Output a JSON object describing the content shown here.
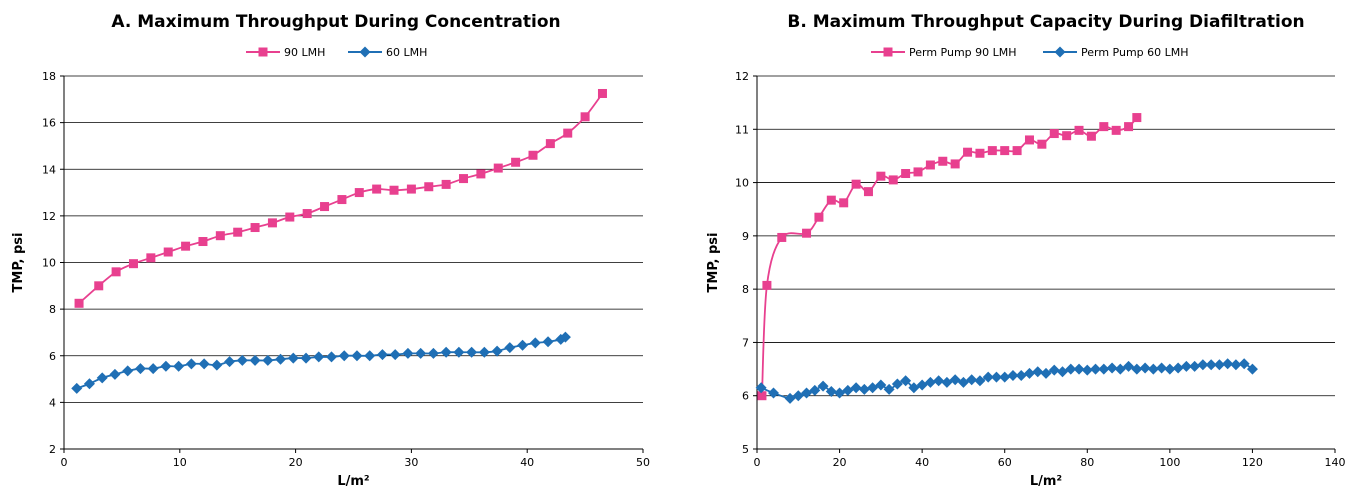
{
  "chart_data": [
    {
      "type": "line",
      "title": "A. Maximum Throughput During Concentration",
      "xlabel": "L/m²",
      "ylabel": "TMP, psi",
      "xlim": [
        0,
        50
      ],
      "ylim": [
        2,
        18
      ],
      "xticks": [
        0,
        10,
        20,
        30,
        40,
        50
      ],
      "yticks": [
        2,
        4,
        6,
        8,
        10,
        12,
        14,
        16,
        18
      ],
      "grid": "horizontal",
      "legend": "top-center",
      "series": [
        {
          "name": "90 LMH",
          "color": "#E8408F",
          "marker": "square",
          "x": [
            1.3,
            3.0,
            4.5,
            6.0,
            7.5,
            9.0,
            10.5,
            12.0,
            13.5,
            15.0,
            16.5,
            18.0,
            19.5,
            21.0,
            22.5,
            24.0,
            25.5,
            27.0,
            28.5,
            30.0,
            31.5,
            33.0,
            34.5,
            36.0,
            37.5,
            39.0,
            40.5,
            42.0,
            43.5,
            45.0,
            46.5
          ],
          "y": [
            8.25,
            9.0,
            9.6,
            9.95,
            10.2,
            10.45,
            10.7,
            10.9,
            11.15,
            11.3,
            11.5,
            11.7,
            11.95,
            12.1,
            12.4,
            12.7,
            13.0,
            13.15,
            13.1,
            13.15,
            13.25,
            13.35,
            13.6,
            13.8,
            14.05,
            14.3,
            14.6,
            15.1,
            15.55,
            16.25,
            17.25
          ]
        },
        {
          "name": "60 LMH",
          "color": "#1F6FB5",
          "marker": "diamond",
          "x": [
            1.1,
            2.2,
            3.3,
            4.4,
            5.5,
            6.6,
            7.7,
            8.8,
            9.9,
            11.0,
            12.1,
            13.2,
            14.3,
            15.4,
            16.5,
            17.6,
            18.7,
            19.8,
            20.9,
            22.0,
            23.1,
            24.2,
            25.3,
            26.4,
            27.5,
            28.6,
            29.7,
            30.8,
            31.9,
            33.0,
            34.1,
            35.2,
            36.3,
            37.4,
            38.5,
            39.6,
            40.7,
            41.8,
            42.9,
            43.3
          ],
          "y": [
            4.6,
            4.8,
            5.05,
            5.2,
            5.35,
            5.45,
            5.45,
            5.55,
            5.55,
            5.65,
            5.65,
            5.6,
            5.75,
            5.8,
            5.8,
            5.8,
            5.85,
            5.9,
            5.9,
            5.95,
            5.95,
            6.0,
            6.0,
            6.0,
            6.05,
            6.05,
            6.1,
            6.1,
            6.1,
            6.15,
            6.15,
            6.15,
            6.15,
            6.2,
            6.35,
            6.45,
            6.55,
            6.6,
            6.7,
            6.8
          ]
        }
      ]
    },
    {
      "type": "line",
      "title": "B. Maximum Throughput Capacity During Diafiltration",
      "xlabel": "L/m²",
      "ylabel": "TMP, psi",
      "xlim": [
        0,
        140
      ],
      "ylim": [
        5,
        12
      ],
      "xticks": [
        0,
        20,
        40,
        60,
        80,
        100,
        120,
        140
      ],
      "yticks": [
        5,
        6,
        7,
        8,
        9,
        10,
        11,
        12
      ],
      "grid": "horizontal",
      "legend": "top-center",
      "series": [
        {
          "name": "Perm Pump 90 LMH",
          "color": "#E8408F",
          "marker": "square",
          "x": [
            1.2,
            2.4,
            6.0,
            12.0,
            15.0,
            18.0,
            21.0,
            24.0,
            27.0,
            30.0,
            33.0,
            36.0,
            39.0,
            42.0,
            45.0,
            48.0,
            51.0,
            54.0,
            57.0,
            60.0,
            63.0,
            66.0,
            69.0,
            72.0,
            75.0,
            78.0,
            81.0,
            84.0,
            87.0,
            90.0,
            92.0
          ],
          "y": [
            6.0,
            8.07,
            8.97,
            9.05,
            9.35,
            9.67,
            9.62,
            9.97,
            9.83,
            10.12,
            10.05,
            10.17,
            10.2,
            10.33,
            10.4,
            10.35,
            10.57,
            10.55,
            10.6,
            10.6,
            10.6,
            10.8,
            10.72,
            10.92,
            10.88,
            10.98,
            10.87,
            11.05,
            10.98,
            11.05,
            11.22
          ]
        },
        {
          "name": "Perm Pump 60 LMH",
          "color": "#1F6FB5",
          "marker": "diamond",
          "x": [
            1.0,
            4.0,
            8.0,
            10.0,
            12.0,
            14.0,
            16.0,
            18.0,
            20.0,
            22.0,
            24.0,
            26.0,
            28.0,
            30.0,
            32.0,
            34.0,
            36.0,
            38.0,
            40.0,
            42.0,
            44.0,
            46.0,
            48.0,
            50.0,
            52.0,
            54.0,
            56.0,
            58.0,
            60.0,
            62.0,
            64.0,
            66.0,
            68.0,
            70.0,
            72.0,
            74.0,
            76.0,
            78.0,
            80.0,
            82.0,
            84.0,
            86.0,
            88.0,
            90.0,
            92.0,
            94.0,
            96.0,
            98.0,
            100.0,
            102.0,
            104.0,
            106.0,
            108.0,
            110.0,
            112.0,
            114.0,
            116.0,
            118.0,
            120.0
          ],
          "y": [
            6.15,
            6.05,
            5.95,
            6.0,
            6.05,
            6.1,
            6.18,
            6.08,
            6.05,
            6.1,
            6.15,
            6.12,
            6.15,
            6.2,
            6.12,
            6.22,
            6.28,
            6.15,
            6.2,
            6.25,
            6.28,
            6.25,
            6.3,
            6.25,
            6.3,
            6.28,
            6.35,
            6.35,
            6.35,
            6.38,
            6.38,
            6.42,
            6.45,
            6.42,
            6.48,
            6.45,
            6.5,
            6.5,
            6.48,
            6.5,
            6.5,
            6.52,
            6.5,
            6.55,
            6.5,
            6.52,
            6.5,
            6.52,
            6.5,
            6.52,
            6.55,
            6.55,
            6.58,
            6.58,
            6.58,
            6.6,
            6.58,
            6.6,
            6.5
          ]
        }
      ]
    }
  ]
}
